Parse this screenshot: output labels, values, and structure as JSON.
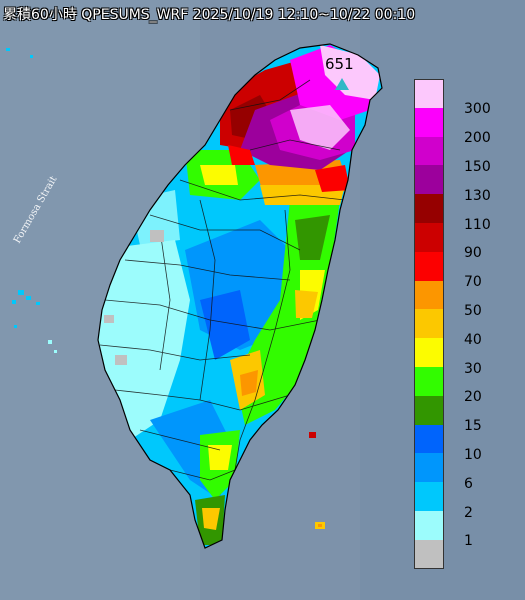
{
  "title": "累積60小時 QPESUMS_WRF 2025/10/19 12:10~10/22 00:10",
  "map": {
    "sea_label": "Formosa Strait",
    "max_value_label": "651",
    "max_marker_color": "#2fb8c6"
  },
  "legend": {
    "unit": "",
    "items": [
      {
        "label": "300",
        "color": "#fcc8fc"
      },
      {
        "label": "200",
        "color": "#fc00fc"
      },
      {
        "label": "150",
        "color": "#d000cc"
      },
      {
        "label": "130",
        "color": "#9c009c"
      },
      {
        "label": "110",
        "color": "#960000"
      },
      {
        "label": "90",
        "color": "#cc0000"
      },
      {
        "label": "70",
        "color": "#fc0000"
      },
      {
        "label": "50",
        "color": "#fc9600"
      },
      {
        "label": "40",
        "color": "#fcc800"
      },
      {
        "label": "30",
        "color": "#fcfc00"
      },
      {
        "label": "20",
        "color": "#32fc00"
      },
      {
        "label": "15",
        "color": "#329600"
      },
      {
        "label": "10",
        "color": "#0064fc"
      },
      {
        "label": "6",
        "color": "#0096fc"
      },
      {
        "label": "2",
        "color": "#00c8fc"
      },
      {
        "label": "1",
        "color": "#9cfcfc"
      },
      {
        "label": "",
        "color": "#c0c0c0"
      }
    ]
  },
  "colors": {
    "sea": "#7d92aa",
    "background_land_1": "#a9f8f8",
    "background_land_2": "#00c8fc"
  }
}
